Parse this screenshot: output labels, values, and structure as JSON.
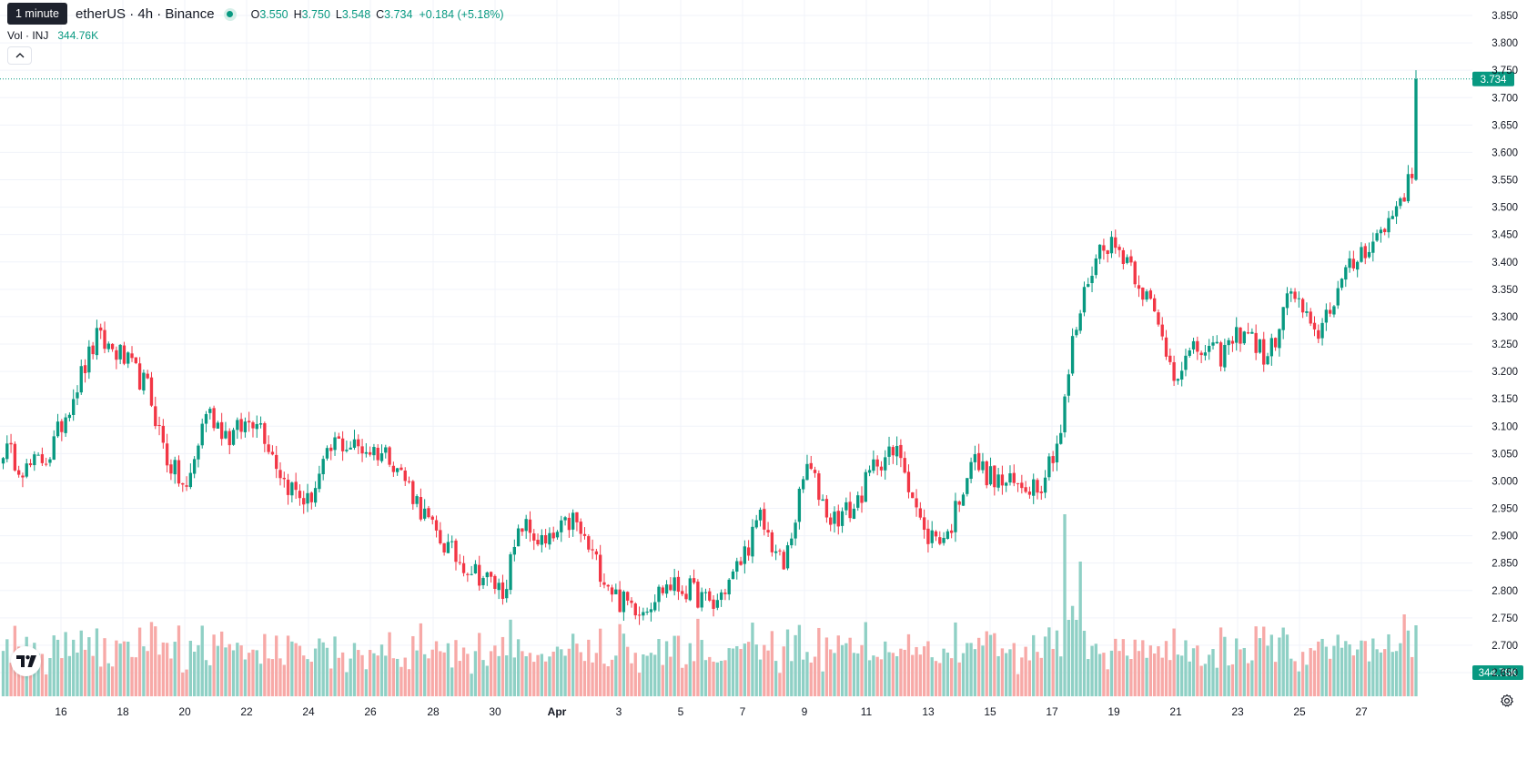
{
  "header": {
    "title": "INJTetherUS · 4h · Binance",
    "title_visible": "etherUS · 4h · Binance",
    "tooltip": "1 minute",
    "ohlc": [
      {
        "key": "O",
        "value": "3.550"
      },
      {
        "key": "H",
        "value": "3.750"
      },
      {
        "key": "L",
        "value": "3.548"
      },
      {
        "key": "C",
        "value": "3.734"
      }
    ],
    "change": "+0.184 (+5.18%)",
    "volume_label": "Vol · INJ",
    "volume_value": "344.76K"
  },
  "colors": {
    "up": "#089981",
    "down": "#f23645",
    "up_volume": "#8fd0c5",
    "down_volume": "#f7a9a7",
    "grid": "#f0f3fa",
    "axis_text": "#131722"
  },
  "icons": {
    "collapse": "chevron-up-icon",
    "logo": "tradingview-logo-icon",
    "settings": "gear-icon"
  },
  "chart_data": {
    "type": "candlestick",
    "timeframe": "4h",
    "y_axis": {
      "ticks": [
        "3.850",
        "3.800",
        "3.750",
        "3.700",
        "3.650",
        "3.600",
        "3.550",
        "3.500",
        "3.450",
        "3.400",
        "3.350",
        "3.300",
        "3.250",
        "3.200",
        "3.150",
        "3.100",
        "3.050",
        "3.000",
        "2.950",
        "2.900",
        "2.850",
        "2.800",
        "2.750",
        "2.700",
        "2.650"
      ],
      "range": [
        2.625,
        3.865
      ]
    },
    "x_axis": {
      "ticks": [
        "16",
        "18",
        "20",
        "22",
        "24",
        "26",
        "28",
        "30",
        "Apr",
        "3",
        "5",
        "7",
        "9",
        "11",
        "13",
        "15",
        "17",
        "19",
        "21",
        "23",
        "25",
        "27"
      ],
      "bold_ticks": [
        "Apr"
      ]
    },
    "last_price_label": "3.734",
    "last_volume_label": "344.76K",
    "close_anchors": [
      [
        0,
        3.06
      ],
      [
        6,
        3.02
      ],
      [
        12,
        3.05
      ],
      [
        18,
        3.16
      ],
      [
        24,
        3.26
      ],
      [
        30,
        3.23
      ],
      [
        37,
        3.17
      ],
      [
        42,
        3.04
      ],
      [
        47,
        2.98
      ],
      [
        52,
        3.13
      ],
      [
        58,
        3.08
      ],
      [
        65,
        3.12
      ],
      [
        72,
        3.0
      ],
      [
        78,
        2.96
      ],
      [
        85,
        3.07
      ],
      [
        92,
        3.06
      ],
      [
        99,
        3.05
      ],
      [
        104,
        2.99
      ],
      [
        110,
        2.91
      ],
      [
        116,
        2.86
      ],
      [
        122,
        2.83
      ],
      [
        128,
        2.8
      ],
      [
        133,
        2.92
      ],
      [
        139,
        2.88
      ],
      [
        146,
        2.93
      ],
      [
        152,
        2.85
      ],
      [
        158,
        2.78
      ],
      [
        164,
        2.77
      ],
      [
        170,
        2.81
      ],
      [
        176,
        2.8
      ],
      [
        182,
        2.77
      ],
      [
        188,
        2.84
      ],
      [
        194,
        2.93
      ],
      [
        200,
        2.84
      ],
      [
        206,
        3.03
      ],
      [
        212,
        2.93
      ],
      [
        218,
        2.95
      ],
      [
        224,
        3.04
      ],
      [
        230,
        3.05
      ],
      [
        236,
        2.9
      ],
      [
        242,
        2.9
      ],
      [
        248,
        3.04
      ],
      [
        254,
        3.0
      ],
      [
        260,
        2.99
      ],
      [
        266,
        3.0
      ],
      [
        271,
        3.09
      ],
      [
        274,
        3.25
      ],
      [
        278,
        3.37
      ],
      [
        282,
        3.44
      ],
      [
        288,
        3.41
      ],
      [
        294,
        3.32
      ],
      [
        300,
        3.2
      ],
      [
        306,
        3.24
      ],
      [
        312,
        3.23
      ],
      [
        318,
        3.28
      ],
      [
        324,
        3.22
      ],
      [
        330,
        3.35
      ],
      [
        336,
        3.26
      ],
      [
        342,
        3.35
      ],
      [
        348,
        3.42
      ],
      [
        354,
        3.46
      ],
      [
        358,
        3.52
      ],
      [
        361,
        3.55
      ],
      [
        362,
        3.734
      ]
    ],
    "volume_range": [
      0,
      1500
    ],
    "volume_peak": 1300
  }
}
